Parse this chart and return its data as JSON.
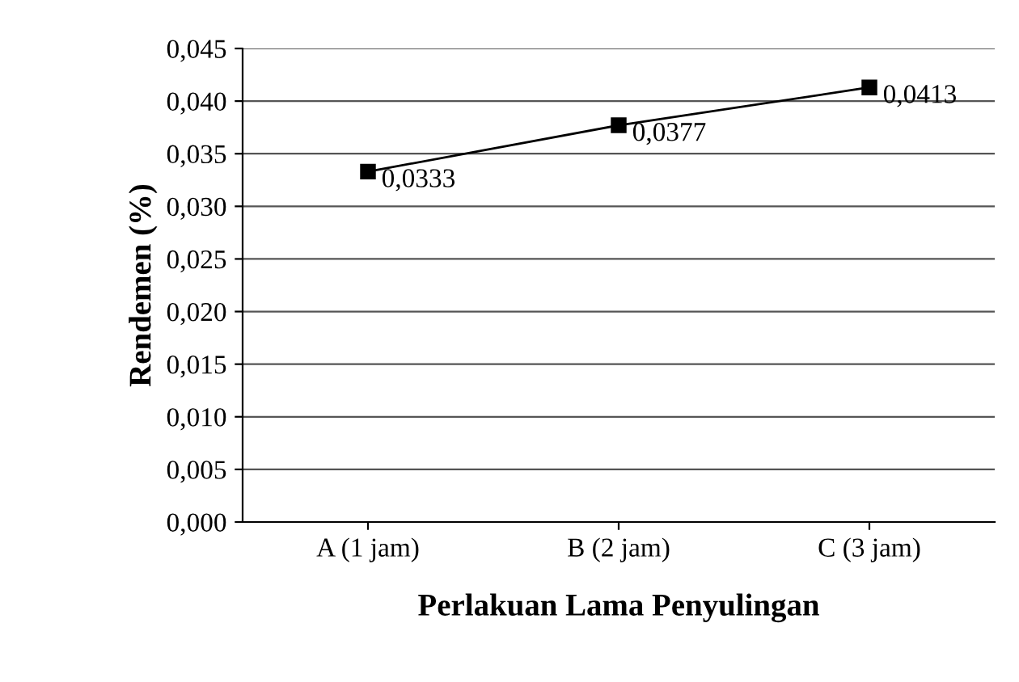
{
  "chart_data": {
    "type": "line",
    "xlabel": "Perlakuan Lama Penyulingan",
    "ylabel": "Rendemen (%)",
    "categories": [
      "A (1 jam)",
      "B (2 jam)",
      "C (3 jam)"
    ],
    "series": [
      {
        "color": "#000000",
        "values": [
          0.0333,
          0.0377,
          0.0413
        ],
        "value_labels": [
          "0,0333",
          "0,0377",
          "0,0413"
        ]
      }
    ],
    "ylim": [
      0,
      0.045
    ],
    "yticks": [
      {
        "value": 0,
        "label": "0,000"
      },
      {
        "value": 0.005,
        "label": "0,005"
      },
      {
        "value": 0.01,
        "label": "0,010"
      },
      {
        "value": 0.015,
        "label": "0,015"
      },
      {
        "value": 0.02,
        "label": "0,020"
      },
      {
        "value": 0.025,
        "label": "0,025"
      },
      {
        "value": 0.03,
        "label": "0,030"
      },
      {
        "value": 0.035,
        "label": "0,035"
      },
      {
        "value": 0.04,
        "label": "0,040"
      },
      {
        "value": 0.045,
        "label": "0,045"
      }
    ],
    "grid": "y",
    "marker": "square",
    "line_style": "solid",
    "legend": false
  }
}
